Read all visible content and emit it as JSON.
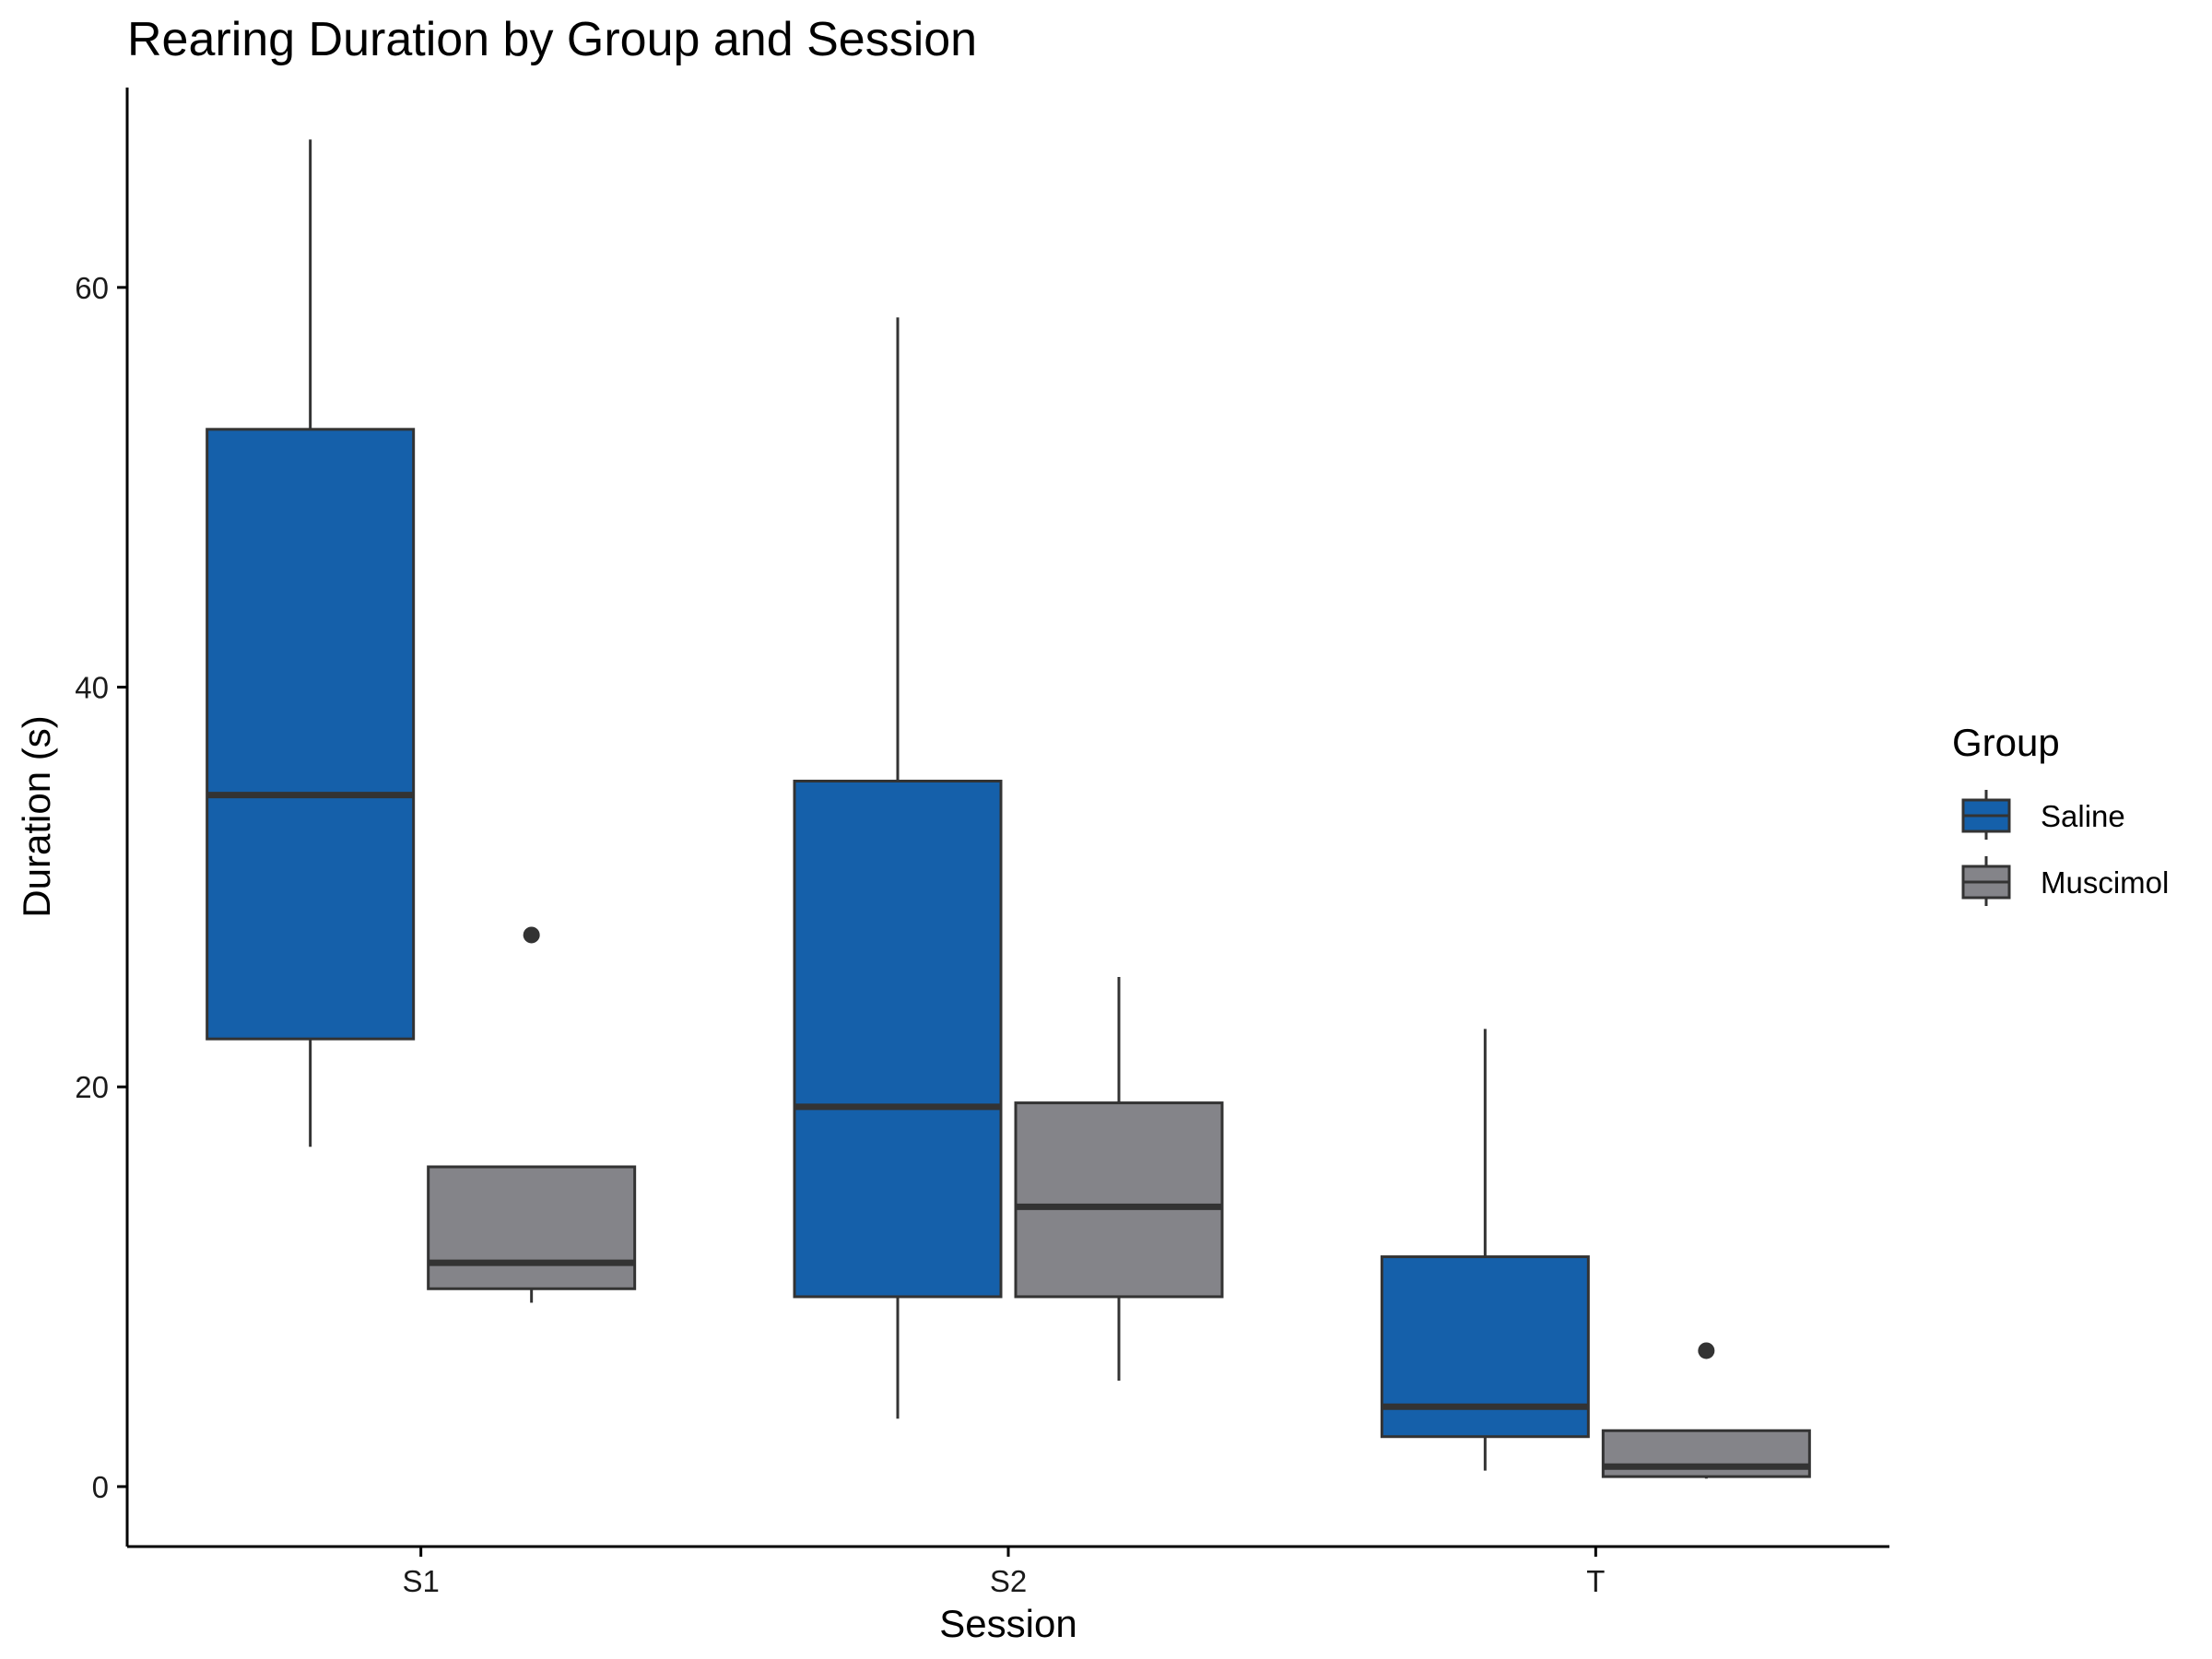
{
  "chart_data": {
    "type": "boxplot",
    "title": "Rearing Duration by Group and Session",
    "xlabel": "Session",
    "ylabel": "Duration (s)",
    "categories": [
      "S1",
      "S2",
      "T"
    ],
    "ylim": [
      -3,
      70
    ],
    "yticks": [
      0,
      20,
      40,
      60
    ],
    "grid": false,
    "legend": {
      "title": "Group",
      "position": "right"
    },
    "series": [
      {
        "name": "Saline",
        "color": "#1560aa",
        "boxes": [
          {
            "category": "S1",
            "whisker_low": 17.0,
            "q1": 22.4,
            "median": 34.6,
            "q3": 52.9,
            "whisker_high": 67.4,
            "outliers": []
          },
          {
            "category": "S2",
            "whisker_low": 3.4,
            "q1": 9.5,
            "median": 19.0,
            "q3": 35.3,
            "whisker_high": 58.5,
            "outliers": []
          },
          {
            "category": "T",
            "whisker_low": 0.8,
            "q1": 2.5,
            "median": 4.0,
            "q3": 11.5,
            "whisker_high": 22.9,
            "outliers": []
          }
        ]
      },
      {
        "name": "Muscimol",
        "color": "#848489",
        "boxes": [
          {
            "category": "S1",
            "whisker_low": 9.2,
            "q1": 9.9,
            "median": 11.2,
            "q3": 16.0,
            "whisker_high": 16.0,
            "outliers": [
              27.6
            ]
          },
          {
            "category": "S2",
            "whisker_low": 5.3,
            "q1": 9.5,
            "median": 14.0,
            "q3": 19.2,
            "whisker_high": 25.5,
            "outliers": []
          },
          {
            "category": "T",
            "whisker_low": 0.4,
            "q1": 0.5,
            "median": 1.0,
            "q3": 2.8,
            "whisker_high": 2.8,
            "outliers": [
              6.8
            ]
          }
        ]
      }
    ]
  }
}
